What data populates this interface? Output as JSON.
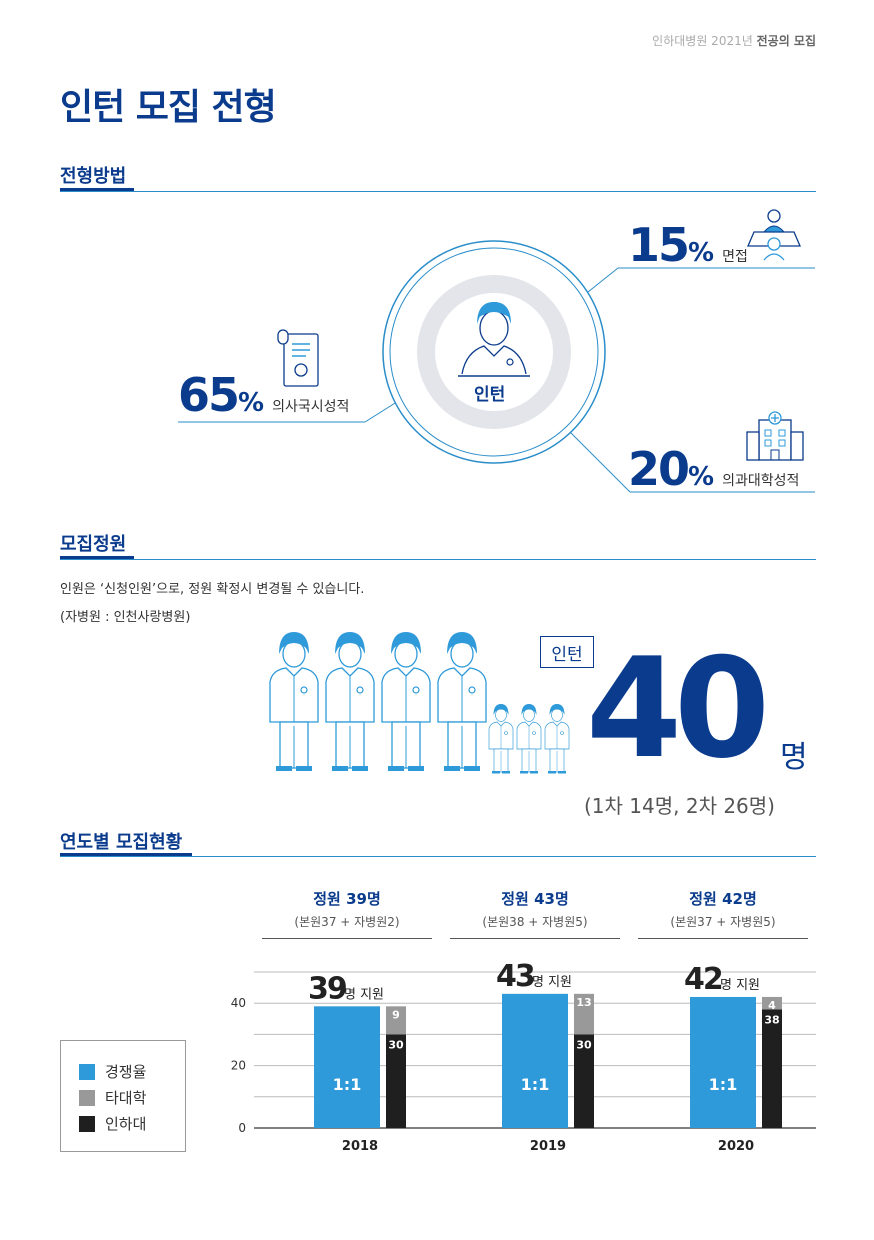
{
  "header": {
    "note_prefix": "인하대병원 2021년",
    "note_bold": "전공의 모집"
  },
  "page_title": "인턴 모집 전형",
  "sections": {
    "method": "전형방법",
    "quota": "모집정원",
    "status": "연도별 모집현황"
  },
  "method": {
    "center_label": "인턴",
    "items": [
      {
        "value": "65",
        "unit": "%",
        "label": "의사국시성적",
        "icon": "certificate-icon"
      },
      {
        "value": "15",
        "unit": "%",
        "label": "면접",
        "icon": "interview-icon"
      },
      {
        "value": "20",
        "unit": "%",
        "label": "의과대학성적",
        "icon": "hospital-icon"
      }
    ]
  },
  "quota": {
    "note1": "인원은 ‘신청인원’으로, 정원 확정시 변경될 수 있습니다.",
    "note2": "(자병원 : 인천사랑병원)",
    "badge": "인턴",
    "number": "40",
    "unit": "명",
    "detail": "(1차 14명, 2차 26명)"
  },
  "colors": {
    "navy": "#0b3b8c",
    "blue": "#2e9ad9",
    "gray": "#999999",
    "black": "#1f1f1f"
  },
  "chart_data": {
    "type": "bar",
    "categories": [
      "2018",
      "2019",
      "2020"
    ],
    "yticks": [
      "0",
      "20",
      "40"
    ],
    "ylim": [
      0,
      50
    ],
    "legend": [
      "경쟁율",
      "타대학",
      "인하대"
    ],
    "groups": [
      {
        "year": "2018",
        "head": "정원 39명",
        "sub": "(본원37 + 자병원2)",
        "applicants": "39",
        "applicants_suffix": "명 지원",
        "ratio_value": 39,
        "ratio_label": "1:1",
        "other": 9,
        "inha": 30
      },
      {
        "year": "2019",
        "head": "정원 43명",
        "sub": "(본원38 + 자병원5)",
        "applicants": "43",
        "applicants_suffix": "명 지원",
        "ratio_value": 43,
        "ratio_label": "1:1",
        "other": 13,
        "inha": 30
      },
      {
        "year": "2020",
        "head": "정원 42명",
        "sub": "(본원37 + 자병원5)",
        "applicants": "42",
        "applicants_suffix": "명 지원",
        "ratio_value": 42,
        "ratio_label": "1:1",
        "other": 4,
        "inha": 38
      }
    ]
  }
}
